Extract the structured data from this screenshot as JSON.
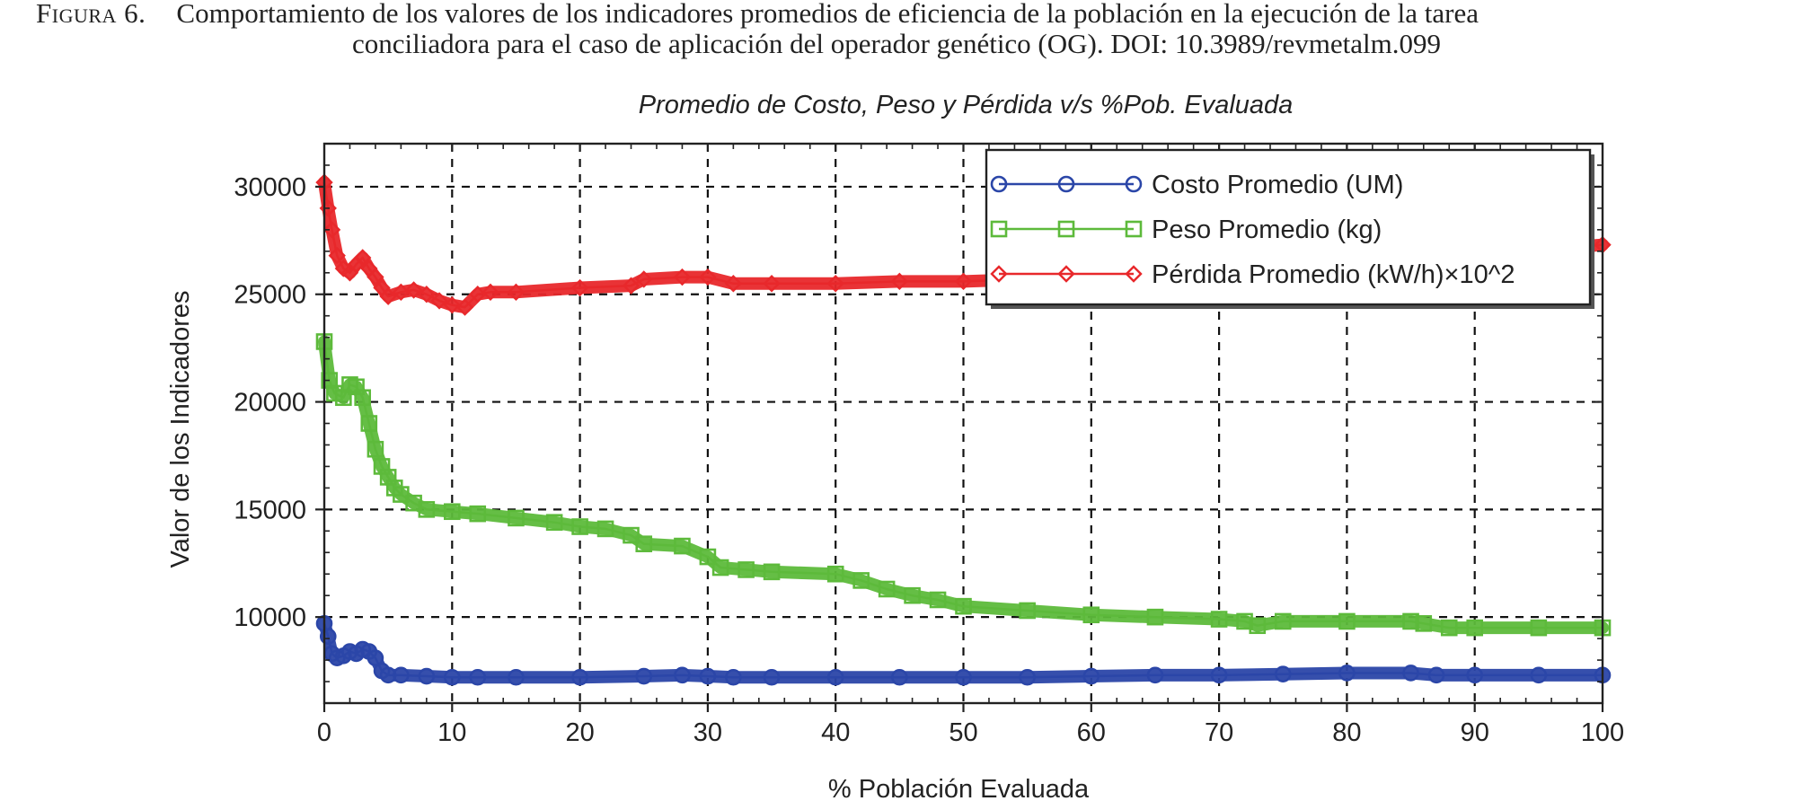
{
  "caption": {
    "label": "Figura 6.",
    "line1": "Comportamiento de los valores de los indicadores promedios de eficiencia de la población en la ejecución de la tarea",
    "line2": "conciliadora para el caso de aplicación del operador genético (OG). DOI: 10.3989/revmetalm.099"
  },
  "chart_data": {
    "type": "line",
    "title": "Promedio de Costo, Peso y Pérdida v/s %Pob. Evaluada",
    "xlabel": "% Población Evaluada",
    "ylabel": "Valor de los Indicadores",
    "xlim": [
      0,
      100
    ],
    "ylim": [
      6000,
      32000
    ],
    "xticks": [
      0,
      10,
      20,
      30,
      40,
      50,
      60,
      70,
      80,
      90,
      100
    ],
    "yticks": [
      10000,
      15000,
      20000,
      25000,
      30000
    ],
    "grid": true,
    "legend_position": "top-right",
    "series": [
      {
        "name": "Costo Promedio (UM)",
        "color": "#2b46a8",
        "marker": "circle",
        "x": [
          0,
          0.3,
          0.6,
          1,
          1.5,
          2,
          2.5,
          3,
          3.5,
          4,
          4.5,
          5,
          6,
          8,
          10,
          12,
          15,
          20,
          25,
          28,
          30,
          32,
          35,
          40,
          45,
          50,
          55,
          60,
          65,
          70,
          75,
          80,
          85,
          87,
          90,
          95,
          100
        ],
        "y": [
          9700,
          9100,
          8300,
          8100,
          8200,
          8400,
          8300,
          8500,
          8400,
          8100,
          7500,
          7300,
          7300,
          7250,
          7200,
          7200,
          7200,
          7200,
          7250,
          7300,
          7250,
          7200,
          7200,
          7200,
          7200,
          7200,
          7200,
          7250,
          7300,
          7300,
          7350,
          7400,
          7400,
          7300,
          7300,
          7300,
          7300
        ]
      },
      {
        "name": "Peso Promedio (kg)",
        "color": "#5dba3b",
        "marker": "square",
        "x": [
          0,
          0.4,
          0.8,
          1.5,
          2,
          2.5,
          3,
          3.5,
          4,
          4.5,
          5,
          5.5,
          6,
          7,
          8,
          10,
          12,
          15,
          18,
          20,
          22,
          24,
          25,
          28,
          30,
          31,
          33,
          35,
          40,
          42,
          44,
          46,
          48,
          50,
          55,
          60,
          65,
          70,
          72,
          73,
          75,
          80,
          85,
          86,
          88,
          90,
          95,
          100
        ],
        "y": [
          22800,
          21000,
          20400,
          20200,
          20800,
          20700,
          20200,
          19000,
          17800,
          17000,
          16500,
          16000,
          15700,
          15300,
          15000,
          14900,
          14800,
          14600,
          14400,
          14200,
          14100,
          13800,
          13400,
          13300,
          12800,
          12300,
          12200,
          12100,
          12000,
          11700,
          11300,
          11000,
          10800,
          10500,
          10300,
          10100,
          10000,
          9900,
          9800,
          9600,
          9800,
          9800,
          9800,
          9700,
          9500,
          9500,
          9500,
          9500
        ]
      },
      {
        "name": "Pérdida Promedio (kW/h)×10^2",
        "color": "#e8282b",
        "marker": "diamond",
        "x": [
          0,
          0.3,
          0.6,
          1,
          1.5,
          2,
          2.5,
          3,
          3.5,
          4,
          4.5,
          5,
          6,
          7,
          8,
          9,
          10,
          11,
          12,
          13,
          15,
          20,
          24,
          25,
          28,
          30,
          32,
          35,
          40,
          45,
          50,
          55,
          60,
          65,
          70,
          75,
          80,
          85,
          90,
          95,
          98,
          100
        ],
        "y": [
          30200,
          29000,
          28000,
          26800,
          26200,
          26000,
          26400,
          26700,
          26200,
          25800,
          25300,
          24900,
          25100,
          25200,
          25000,
          24700,
          24500,
          24400,
          25000,
          25100,
          25100,
          25300,
          25400,
          25700,
          25800,
          25800,
          25500,
          25500,
          25500,
          25600,
          25600,
          25700,
          25800,
          26000,
          26200,
          26400,
          26600,
          26800,
          27000,
          27100,
          27200,
          27300
        ]
      }
    ]
  }
}
